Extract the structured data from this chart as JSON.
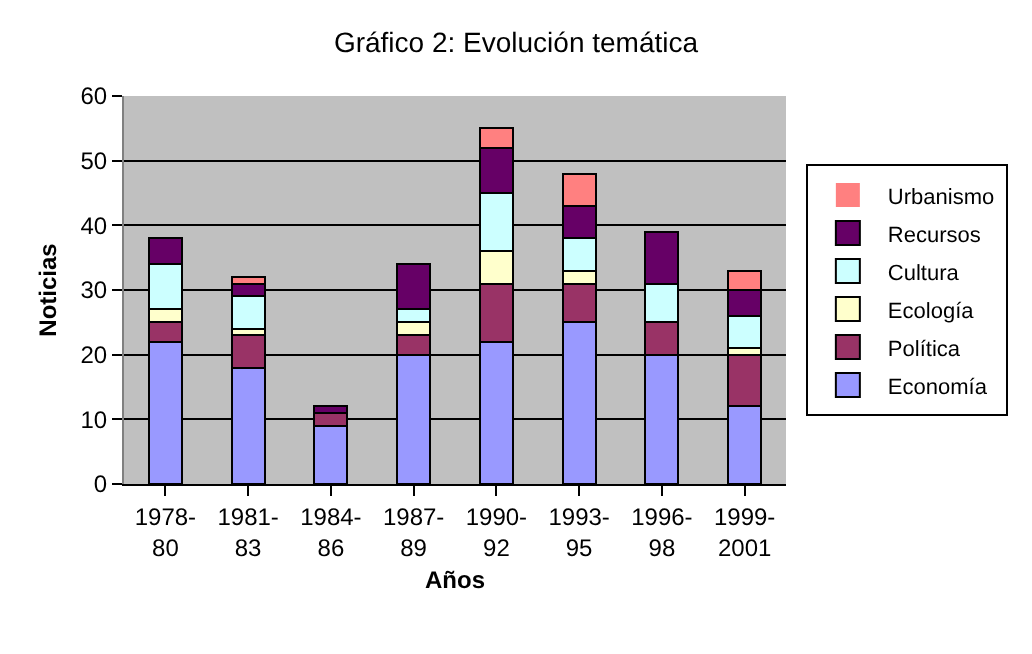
{
  "chart_data": {
    "type": "bar",
    "stacked": true,
    "title": "Gráfico 2: Evolución temática",
    "xlabel": "Años",
    "ylabel": "Noticias",
    "categories": [
      "1978-\n80",
      "1981-\n83",
      "1984-\n86",
      "1987-\n89",
      "1990-\n92",
      "1993-\n95",
      "1996-\n98",
      "1999-\n2001"
    ],
    "series": [
      {
        "name": "Economía",
        "color": "#9999ff",
        "values": [
          22,
          18,
          9,
          20,
          22,
          25,
          20,
          12
        ]
      },
      {
        "name": "Política",
        "color": "#993366",
        "values": [
          3,
          5,
          2,
          3,
          9,
          6,
          5,
          8
        ]
      },
      {
        "name": "Ecología",
        "color": "#ffffcc",
        "values": [
          2,
          1,
          0,
          2,
          5,
          2,
          0,
          1
        ]
      },
      {
        "name": "Cultura",
        "color": "#ccffff",
        "values": [
          7,
          5,
          0,
          2,
          9,
          5,
          6,
          5
        ]
      },
      {
        "name": "Recursos",
        "color": "#660066",
        "values": [
          4,
          2,
          1,
          7,
          7,
          5,
          8,
          4
        ]
      },
      {
        "name": "Urbanismo",
        "color": "#ff8080",
        "values": [
          0,
          1,
          0,
          0,
          3,
          5,
          0,
          3
        ]
      }
    ],
    "ylim": [
      0,
      60
    ],
    "yticks": [
      0,
      10,
      20,
      30,
      40,
      50,
      60
    ],
    "grid": "y",
    "legend": "right"
  }
}
